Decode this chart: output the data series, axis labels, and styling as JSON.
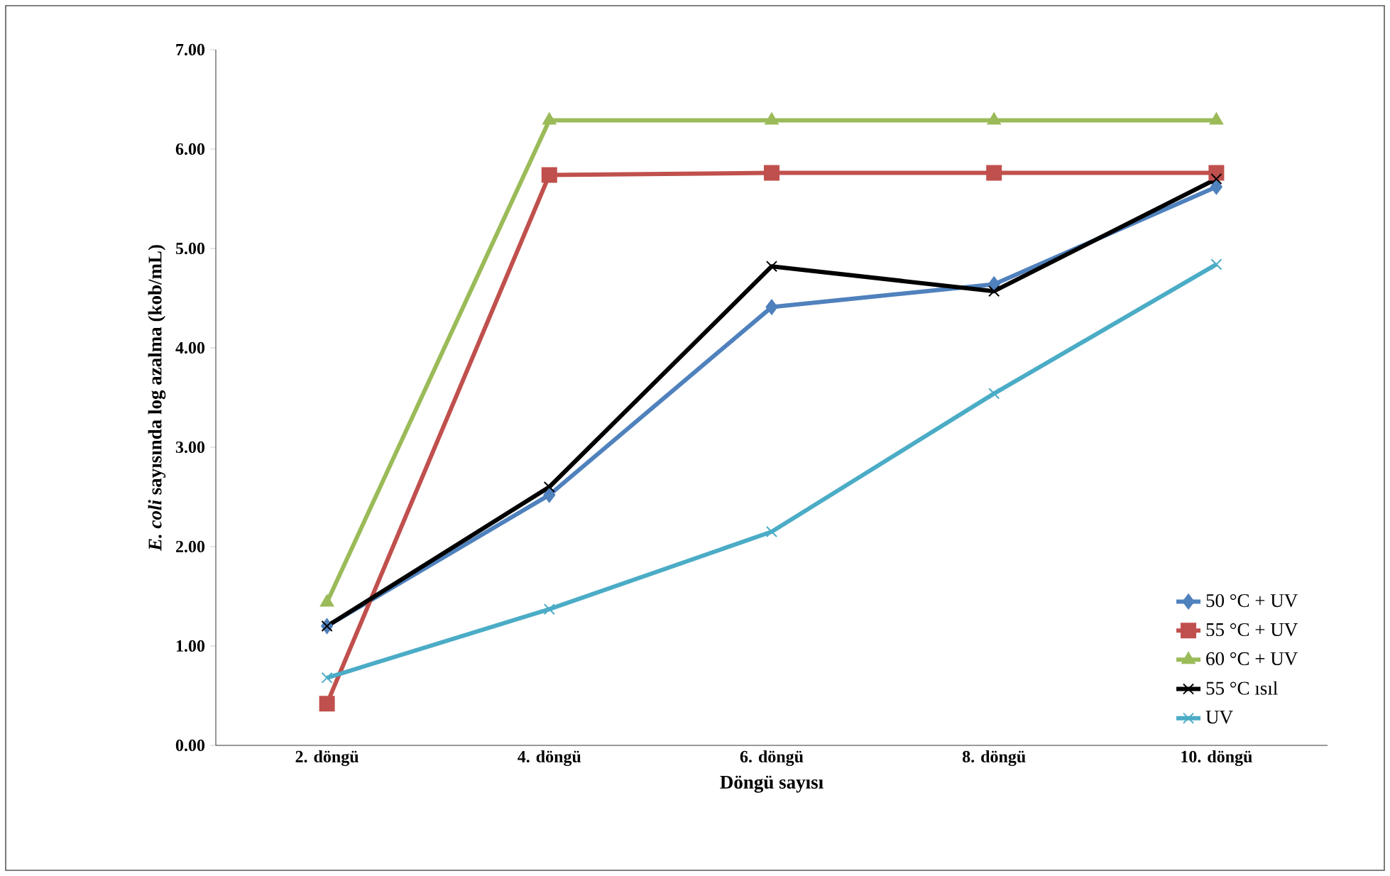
{
  "chart_data": {
    "type": "line",
    "xlabel": "Döngü sayısı",
    "ylabel": "*E. coli* sayısında log azalma (kob/mL)",
    "categories": [
      "2. döngü",
      "4. döngü",
      "6. döngü",
      "8. döngü",
      "10. döngü"
    ],
    "ylim": [
      0,
      7
    ],
    "yticks": [
      {
        "value": 0,
        "label": "0.00"
      },
      {
        "value": 1,
        "label": "1.00"
      },
      {
        "value": 2,
        "label": "2.00"
      },
      {
        "value": 3,
        "label": "3.00"
      },
      {
        "value": 4,
        "label": "4.00"
      },
      {
        "value": 5,
        "label": "5.00"
      },
      {
        "value": 6,
        "label": "6.00"
      },
      {
        "value": 7,
        "label": "7.00"
      }
    ],
    "grid": false,
    "legend": "bottom right",
    "line_style": "solid",
    "series": [
      {
        "name": "50 °C + UV",
        "color": "#4f81bd",
        "marker": "diamond",
        "values": [
          1.2,
          2.52,
          4.41,
          4.64,
          5.62
        ]
      },
      {
        "name": "55 °C + UV",
        "color": "#c0504d",
        "marker": "square",
        "values": [
          0.42,
          5.74,
          5.76,
          5.76,
          5.76
        ]
      },
      {
        "name": "60 °C + UV",
        "color": "#9bbb59",
        "marker": "triangle",
        "values": [
          1.44,
          6.29,
          6.29,
          6.29,
          6.29
        ]
      },
      {
        "name": "55 °C ısıl",
        "color": "#000000",
        "marker": "cross",
        "values": [
          1.2,
          2.6,
          4.82,
          4.57,
          5.7
        ]
      },
      {
        "name": "UV",
        "color": "#4bacc6",
        "marker": "cross",
        "values": [
          0.68,
          1.37,
          2.15,
          3.54,
          4.84
        ]
      }
    ]
  }
}
